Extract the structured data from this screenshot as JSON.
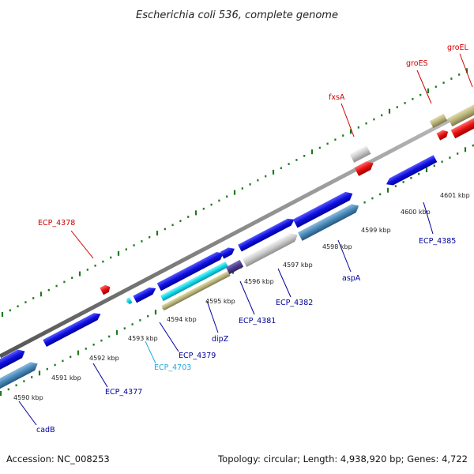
{
  "title": "Escherichia coli 536, complete genome",
  "footer": {
    "accession": "Accession: NC_008253",
    "summary": "Topology: circular; Length: 4,938,920 bp; Genes: 4,722"
  },
  "colors": {
    "backbone": "#8a8a8a",
    "tick": "#1e7a1e",
    "gene_blue": "#1010e0",
    "gene_red": "#e81010",
    "gene_cyan": "#10d8e8",
    "gene_khaki": "#b8b278",
    "gene_steel": "#4a88b8",
    "gene_gray": "#c8c8c8",
    "gene_indigo": "#4c3c8c",
    "label_red": "#cc0000",
    "label_blue": "#000099",
    "label_cyan": "#22aadd"
  },
  "scale_labels": [
    "4590 kbp",
    "4591 kbp",
    "4592 kbp",
    "4593 kbp",
    "4594 kbp",
    "4595 kbp",
    "4596 kbp",
    "4597 kbp",
    "4598 kbp",
    "4599 kbp",
    "4600 kbp",
    "4601 kbp"
  ],
  "gene_labels": [
    {
      "text": "ECP_4378",
      "color": "red"
    },
    {
      "text": "fxsA",
      "color": "red"
    },
    {
      "text": "groES",
      "color": "red"
    },
    {
      "text": "groEL",
      "color": "red"
    },
    {
      "text": "ECP_4385",
      "color": "blue"
    },
    {
      "text": "aspA",
      "color": "blue"
    },
    {
      "text": "ECP_4382",
      "color": "blue"
    },
    {
      "text": "ECP_4381",
      "color": "blue"
    },
    {
      "text": "dipZ",
      "color": "blue"
    },
    {
      "text": "ECP_4379",
      "color": "blue"
    },
    {
      "text": "ECP_4703",
      "color": "cyan"
    },
    {
      "text": "ECP_4377",
      "color": "blue"
    },
    {
      "text": "cadB",
      "color": "blue"
    }
  ]
}
